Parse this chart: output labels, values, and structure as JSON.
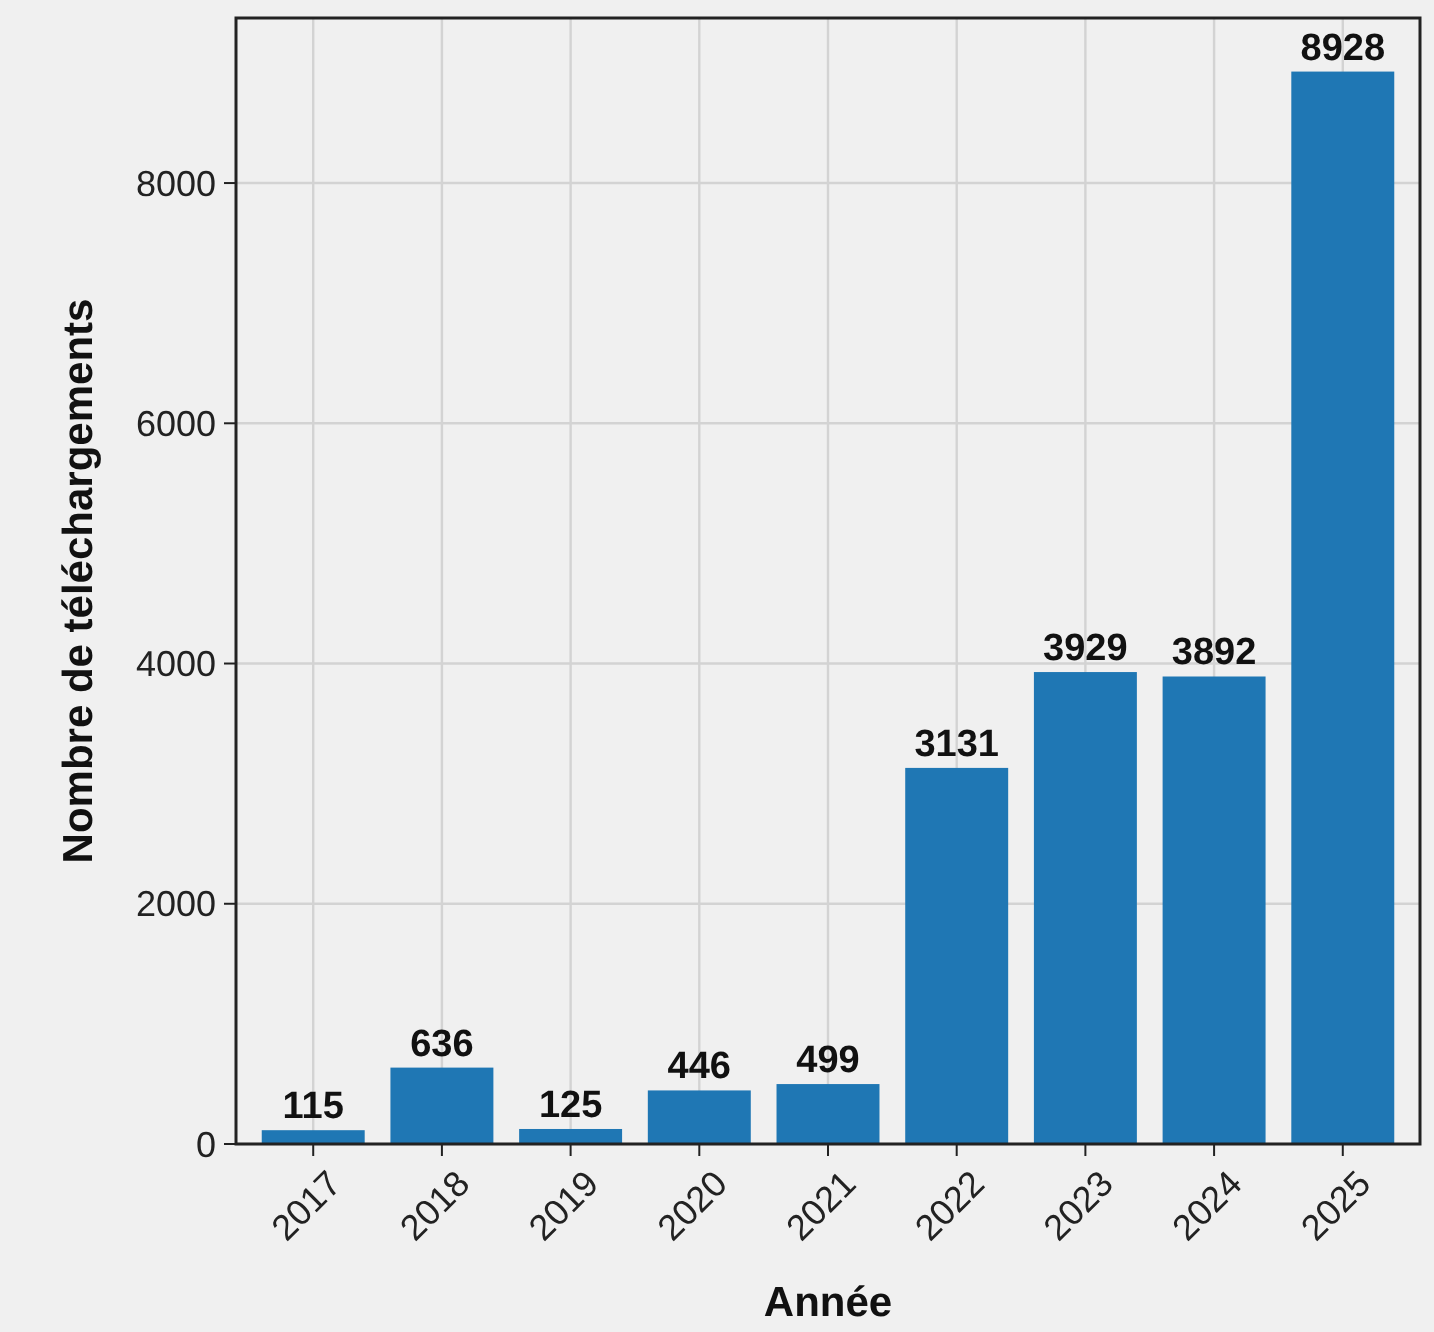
{
  "chart_data": {
    "type": "bar",
    "xlabel": "Année",
    "ylabel": "Nombre de téléchargements",
    "categories": [
      "2017",
      "2018",
      "2019",
      "2020",
      "2021",
      "2022",
      "2023",
      "2024",
      "2025"
    ],
    "values": [
      115,
      636,
      125,
      446,
      499,
      3131,
      3929,
      3892,
      8928
    ],
    "color": "#1f77b4",
    "ylim": [
      0,
      9374
    ],
    "yticks": [
      0,
      2000,
      4000,
      6000,
      8000
    ],
    "grid": true,
    "data_labels": true
  }
}
